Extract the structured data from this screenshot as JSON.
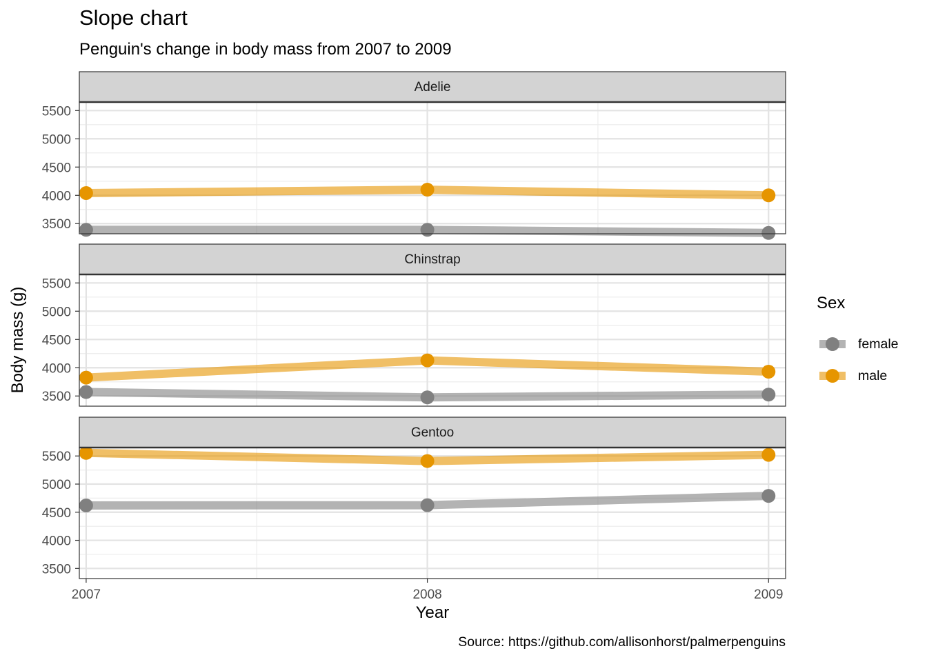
{
  "chart_data": {
    "type": "line",
    "title": "Slope chart",
    "subtitle": "Penguin's change in body mass from 2007 to 2009",
    "caption": "Source: https://github.com/allisonhorst/palmerpenguins",
    "xlabel": "Year",
    "ylabel": "Body mass (g)",
    "x": [
      2007,
      2008,
      2009
    ],
    "xlim": [
      2006.98,
      2009.05
    ],
    "ylim": [
      3320,
      5650
    ],
    "y_ticks": [
      3500,
      4000,
      4500,
      5000,
      5500
    ],
    "grid": true,
    "legend": {
      "title": "Sex",
      "position": "right",
      "entries": [
        {
          "label": "female",
          "color": "#808080"
        },
        {
          "label": "male",
          "color": "#E69500"
        }
      ]
    },
    "colors": {
      "female": "#808080",
      "male": "#E69500"
    },
    "panels": [
      {
        "label": "Adelie",
        "series": [
          {
            "name": "female",
            "values": [
              3390,
              3390,
              3335
            ]
          },
          {
            "name": "male",
            "values": [
              4040,
              4100,
              4000
            ]
          }
        ]
      },
      {
        "label": "Chinstrap",
        "series": [
          {
            "name": "female",
            "values": [
              3570,
              3475,
              3525
            ]
          },
          {
            "name": "male",
            "values": [
              3825,
              4130,
              3930
            ]
          }
        ]
      },
      {
        "label": "Gentoo",
        "series": [
          {
            "name": "female",
            "values": [
              4620,
              4625,
              4790
            ]
          },
          {
            "name": "male",
            "values": [
              5555,
              5410,
              5520
            ]
          }
        ]
      }
    ]
  }
}
